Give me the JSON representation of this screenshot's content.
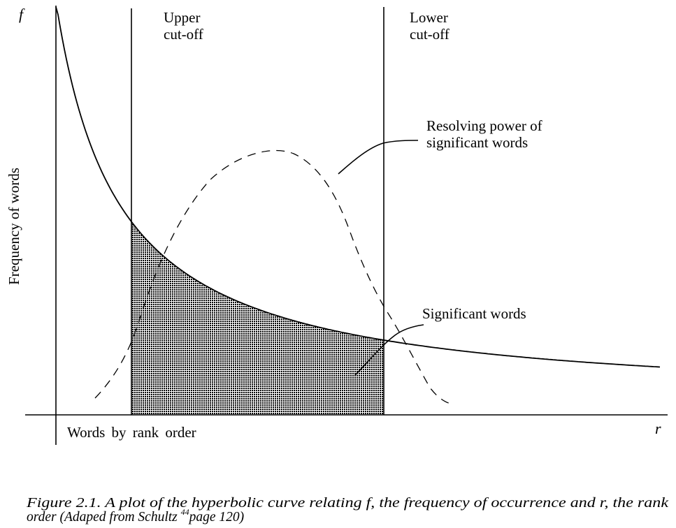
{
  "figure": {
    "axis_y_letter": "f",
    "axis_x_letter": "r",
    "y_axis_label": "Frequency of words",
    "x_axis_label": "Words by rank order",
    "upper_cutoff": {
      "line1": "Upper",
      "line2": "cut-off"
    },
    "lower_cutoff": {
      "line1": "Lower",
      "line2": "cut-off"
    },
    "resolving_power": {
      "line1": "Resolving power of",
      "line2": "significant words"
    },
    "significant_words": "Significant words"
  },
  "caption": {
    "line1": "Figure 2.1.   A plot of the hyperbolic curve relating f, the frequency of occurrence and r, the rank",
    "line2_a": "order  (Adaped from Schultz ",
    "line2_sup": "44",
    "line2_b": "page 120)"
  },
  "colors": {
    "ink": "#000000",
    "paper": "#ffffff"
  }
}
